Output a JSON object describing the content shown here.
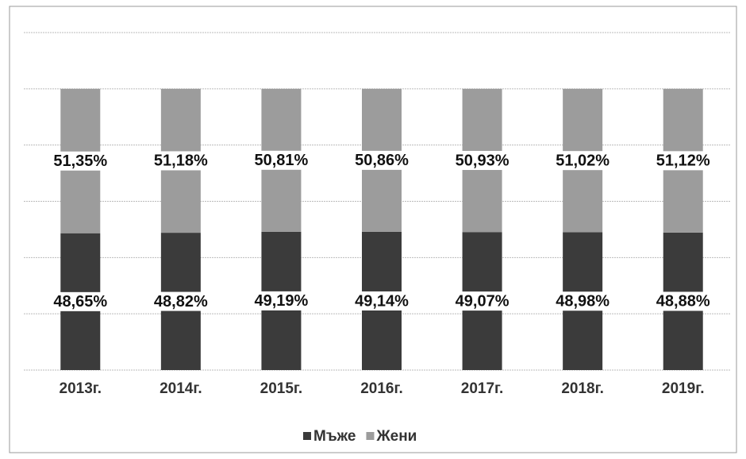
{
  "chart_data": {
    "type": "stacked_bar",
    "categories": [
      "2013г.",
      "2014г.",
      "2015г.",
      "2016г.",
      "2017г.",
      "2018г.",
      "2019г."
    ],
    "series": [
      {
        "name": "Мъже",
        "color": "#3b3b3b",
        "values": [
          48.65,
          48.82,
          49.19,
          49.14,
          49.07,
          48.98,
          48.88
        ],
        "value_labels": [
          "48,65%",
          "48,82%",
          "49,19%",
          "49,14%",
          "49,07%",
          "48,98%",
          "48,88%"
        ]
      },
      {
        "name": "Жени",
        "color": "#9c9c9c",
        "values": [
          51.35,
          51.18,
          50.81,
          50.86,
          50.93,
          51.02,
          51.12
        ],
        "value_labels": [
          "51,35%",
          "51,18%",
          "50,81%",
          "50,86%",
          "50,93%",
          "51,02%",
          "51,12%"
        ]
      }
    ],
    "ylim": [
      0,
      120
    ],
    "yticks": [
      0,
      20,
      40,
      60,
      80,
      100,
      120
    ],
    "grid": true,
    "legend": "bottom"
  }
}
